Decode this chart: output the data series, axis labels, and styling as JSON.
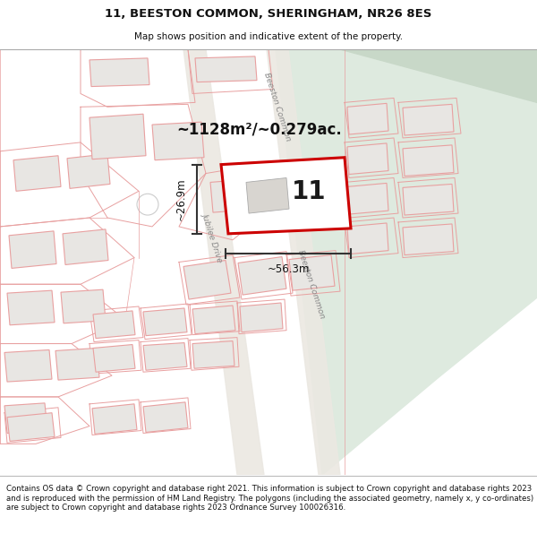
{
  "title": "11, BEESTON COMMON, SHERINGHAM, NR26 8ES",
  "subtitle": "Map shows position and indicative extent of the property.",
  "footer": "Contains OS data © Crown copyright and database right 2021. This information is subject to Crown copyright and database rights 2023 and is reproduced with the permission of HM Land Registry. The polygons (including the associated geometry, namely x, y co-ordinates) are subject to Crown copyright and database rights 2023 Ordnance Survey 100026316.",
  "area_label": "~1128m²/~0.279ac.",
  "property_number": "11",
  "width_label": "~56.3m",
  "height_label": "~26.9m",
  "map_bg": "#f7f5f2",
  "green_color": "#deeadf",
  "building_fill": "#e8e6e3",
  "boundary_color": "#e8a0a0",
  "plot_outline_color": "#cc0000",
  "road_fill": "#ebe8e2",
  "dim_color": "#333333",
  "road_label1": "Jubilee Drive",
  "road_label2_top": "Beeston Common",
  "road_label2_bot": "Beeston Common"
}
